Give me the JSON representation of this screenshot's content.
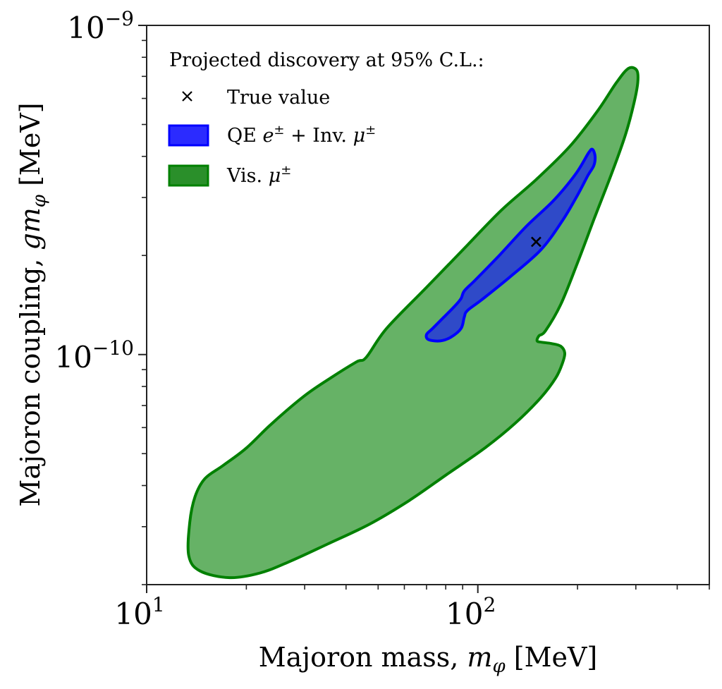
{
  "chart_data": {
    "type": "area",
    "title": "",
    "xlabel": "Majoron mass, m_φ [MeV]",
    "ylabel": "Majoron coupling, g m_φ [MeV]",
    "xlabel_parts": {
      "pre": "Majoron mass, ",
      "sym": "m",
      "sub": "φ",
      "post": " [MeV]"
    },
    "ylabel_parts": {
      "pre": "Majoron coupling, ",
      "sym": "gm",
      "sub": "φ",
      "post": " [MeV]"
    },
    "xscale": "log",
    "yscale": "log",
    "xlim": [
      10,
      500
    ],
    "ylim": [
      2e-11,
      1e-09
    ],
    "grid": false,
    "x_ticks": [
      {
        "value": 10,
        "base": "10",
        "exp": "1"
      },
      {
        "value": 100,
        "base": "10",
        "exp": "2"
      }
    ],
    "y_ticks": [
      {
        "value": 1e-10,
        "base": "10",
        "exp": "−10"
      },
      {
        "value": 1e-09,
        "base": "10",
        "exp": "−9"
      }
    ],
    "legend": {
      "placement": "top-left",
      "title": "Projected discovery at 95% C.L.:",
      "entries": [
        {
          "marker": "x",
          "label": "True value"
        },
        {
          "marker": "patch",
          "label_parts": [
            "QE ",
            "e",
            "±",
            " + Inv. ",
            "μ",
            "±"
          ],
          "label": "QE e± + Inv. μ±",
          "face": "#2b2bff",
          "edge": "#0000ff"
        },
        {
          "marker": "patch",
          "label_parts": [
            "Vis. ",
            "μ",
            "±"
          ],
          "label": "Vis. μ±",
          "face": "#2a8f2a",
          "edge": "#008000"
        }
      ]
    },
    "true_value": {
      "x": 150,
      "y": 2.2e-10,
      "label": "True value"
    },
    "series": [
      {
        "name": "Vis. μ±",
        "fill": "#66b266",
        "edge": "#008000",
        "contour": [
          [
            13.4,
            2.45e-11
          ],
          [
            14.5,
            2.2e-11
          ],
          [
            17.8,
            2.1e-11
          ],
          [
            22,
            2.17e-11
          ],
          [
            27,
            2.35e-11
          ],
          [
            35,
            2.65e-11
          ],
          [
            47,
            3.05e-11
          ],
          [
            62,
            3.6e-11
          ],
          [
            80,
            4.3e-11
          ],
          [
            105,
            5.2e-11
          ],
          [
            130,
            6.2e-11
          ],
          [
            155,
            7.4e-11
          ],
          [
            172,
            8.5e-11
          ],
          [
            180,
            9.4e-11
          ],
          [
            183,
            1.01e-10
          ],
          [
            178,
            1.06e-10
          ],
          [
            167,
            1.08e-10
          ],
          [
            156,
            1.09e-10
          ],
          [
            151,
            1.1e-10
          ],
          [
            153,
            1.14e-10
          ],
          [
            160,
            1.18e-10
          ],
          [
            178,
            1.42e-10
          ],
          [
            200,
            1.9e-10
          ],
          [
            225,
            2.6e-10
          ],
          [
            255,
            3.6e-10
          ],
          [
            280,
            4.7e-10
          ],
          [
            296,
            5.8e-10
          ],
          [
            304,
            6.7e-10
          ],
          [
            302,
            7.3e-10
          ],
          [
            285,
            7.4e-10
          ],
          [
            262,
            6.7e-10
          ],
          [
            230,
            5.5e-10
          ],
          [
            190,
            4.3e-10
          ],
          [
            150,
            3.4e-10
          ],
          [
            118,
            2.75e-10
          ],
          [
            93,
            2.15e-10
          ],
          [
            70,
            1.6e-10
          ],
          [
            53,
            1.2e-10
          ],
          [
            46,
            9.8e-11
          ],
          [
            43,
            9.5e-11
          ],
          [
            36,
            8.5e-11
          ],
          [
            30,
            7.5e-11
          ],
          [
            24,
            6.2e-11
          ],
          [
            20,
            5.2e-11
          ],
          [
            17,
            4.6e-11
          ],
          [
            15,
            4.2e-11
          ],
          [
            14,
            3.7e-11
          ],
          [
            13.5,
            3.1e-11
          ]
        ]
      },
      {
        "name": "QE e± + Inv. μ±",
        "fill": "#2f4ac8",
        "edge": "#0000ff",
        "contour": [
          [
            71,
            1.11e-10
          ],
          [
            77,
            1.1e-10
          ],
          [
            83,
            1.13e-10
          ],
          [
            89,
            1.2e-10
          ],
          [
            91,
            1.3e-10
          ],
          [
            93,
            1.36e-10
          ],
          [
            103,
            1.47e-10
          ],
          [
            125,
            1.72e-10
          ],
          [
            155,
            2.08e-10
          ],
          [
            180,
            2.55e-10
          ],
          [
            200,
            3.05e-10
          ],
          [
            215,
            3.5e-10
          ],
          [
            224,
            3.75e-10
          ],
          [
            226,
            4e-10
          ],
          [
            222,
            4.2e-10
          ],
          [
            216,
            4.1e-10
          ],
          [
            198,
            3.55e-10
          ],
          [
            170,
            2.95e-10
          ],
          [
            140,
            2.45e-10
          ],
          [
            115,
            1.98e-10
          ],
          [
            98,
            1.68e-10
          ],
          [
            91,
            1.56e-10
          ],
          [
            89,
            1.48e-10
          ],
          [
            85,
            1.4e-10
          ],
          [
            79,
            1.3e-10
          ],
          [
            73,
            1.2e-10
          ],
          [
            70,
            1.15e-10
          ]
        ]
      }
    ]
  }
}
